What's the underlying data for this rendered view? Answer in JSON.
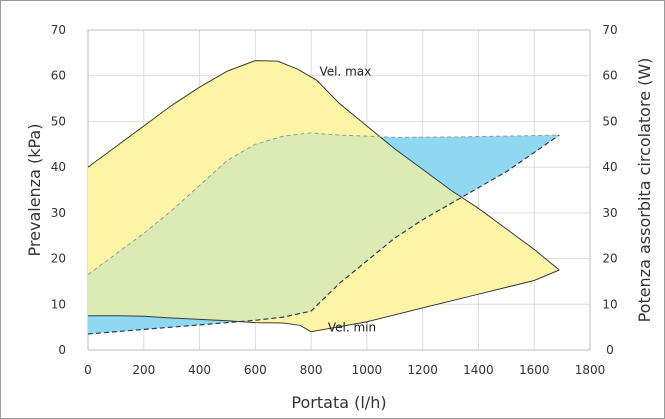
{
  "chart_data": {
    "type": "area",
    "xlabel": "Portata (l/h)",
    "ylabel": "Prevalenza (kPa)",
    "y2label": "Potenza assorbita circolatore (W)",
    "xlim": [
      0,
      1800
    ],
    "ylim": [
      0,
      70
    ],
    "y2lim": [
      0,
      70
    ],
    "x_ticks": [
      0,
      200,
      400,
      600,
      800,
      1000,
      1200,
      1400,
      1600,
      1800
    ],
    "y_ticks": [
      0,
      10,
      20,
      30,
      40,
      50,
      60,
      70
    ],
    "y2_ticks": [
      0,
      10,
      20,
      30,
      40,
      50,
      60,
      70
    ],
    "grid": true,
    "colors": {
      "head_area": "#fdf5a6",
      "power_area": "#8fd8f2",
      "overlap_area": "#dcebb4",
      "grid": "#dcdcdc"
    },
    "annotations": [
      {
        "text": "Vel. max",
        "x": 830,
        "y": 60
      },
      {
        "text": "Vel. min",
        "x": 860,
        "y": 4
      }
    ],
    "series": [
      {
        "curve": "head_max",
        "axis": "left",
        "points": [
          [
            0,
            40
          ],
          [
            100,
            44.5
          ],
          [
            200,
            49
          ],
          [
            300,
            53.5
          ],
          [
            400,
            57.5
          ],
          [
            500,
            61
          ],
          [
            600,
            63.3
          ],
          [
            680,
            63.2
          ],
          [
            750,
            61.5
          ],
          [
            820,
            59
          ],
          [
            900,
            54
          ],
          [
            1000,
            49
          ],
          [
            1100,
            44
          ],
          [
            1200,
            39.5
          ],
          [
            1300,
            35
          ],
          [
            1400,
            31
          ],
          [
            1500,
            26.5
          ],
          [
            1600,
            22
          ],
          [
            1690,
            17.5
          ]
        ]
      },
      {
        "curve": "head_min",
        "axis": "left",
        "points": [
          [
            0,
            7.5
          ],
          [
            100,
            7.5
          ],
          [
            200,
            7.4
          ],
          [
            300,
            7.0
          ],
          [
            400,
            6.7
          ],
          [
            500,
            6.4
          ],
          [
            600,
            6.0
          ],
          [
            700,
            5.9
          ],
          [
            760,
            5.4
          ],
          [
            800,
            4
          ],
          [
            1000,
            6.2
          ],
          [
            1200,
            9.2
          ],
          [
            1400,
            12.2
          ],
          [
            1600,
            15.2
          ],
          [
            1690,
            17.5
          ]
        ]
      },
      {
        "curve": "power_max",
        "axis": "right",
        "points": [
          [
            0,
            16.5
          ],
          [
            100,
            21
          ],
          [
            200,
            25.5
          ],
          [
            300,
            30.5
          ],
          [
            400,
            36
          ],
          [
            500,
            41.5
          ],
          [
            600,
            45
          ],
          [
            700,
            46.8
          ],
          [
            800,
            47.5
          ],
          [
            900,
            47
          ],
          [
            1000,
            46.8
          ],
          [
            1100,
            46.5
          ],
          [
            1300,
            46.6
          ],
          [
            1500,
            46.8
          ],
          [
            1690,
            47
          ]
        ]
      },
      {
        "curve": "power_min",
        "axis": "right",
        "points": [
          [
            0,
            3.5
          ],
          [
            200,
            4.5
          ],
          [
            400,
            5.5
          ],
          [
            600,
            6.5
          ],
          [
            700,
            7.2
          ],
          [
            800,
            8.5
          ],
          [
            900,
            14.5
          ],
          [
            1000,
            19.5
          ],
          [
            1100,
            24.5
          ],
          [
            1200,
            28.5
          ],
          [
            1300,
            32
          ],
          [
            1400,
            35.5
          ],
          [
            1500,
            39
          ],
          [
            1690,
            47
          ]
        ]
      }
    ]
  }
}
